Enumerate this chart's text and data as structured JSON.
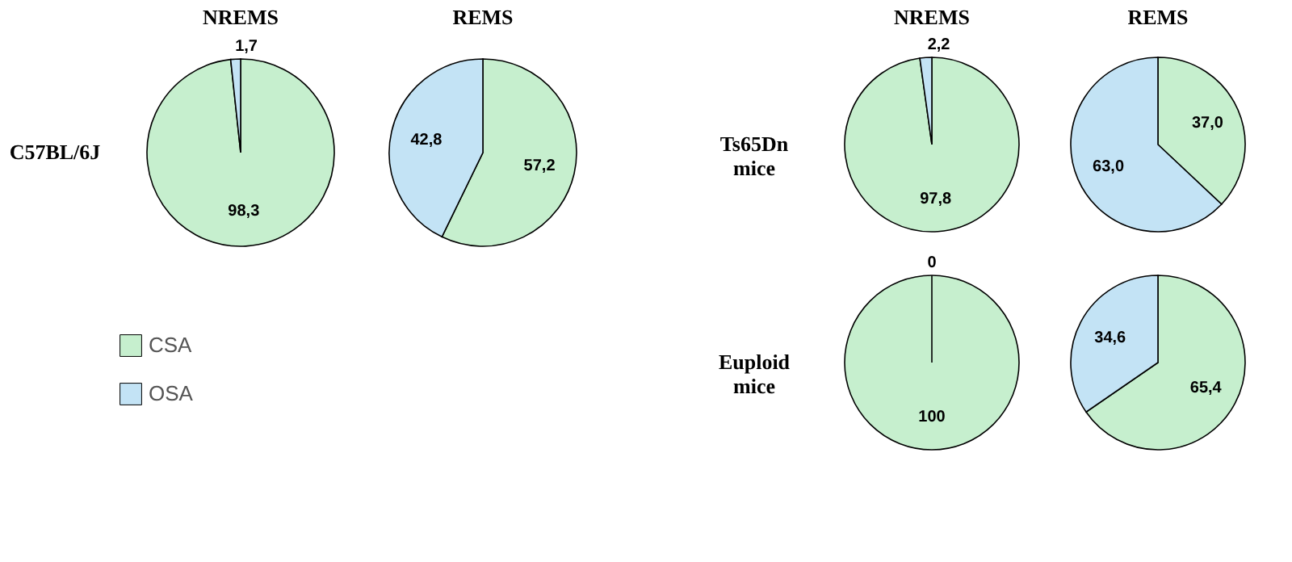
{
  "chart_data": [
    {
      "type": "pie",
      "title": "NREMS",
      "ylabel": "C57BL/6J",
      "categories": [
        "CSA",
        "OSA"
      ],
      "values": [
        98.3,
        1.7
      ],
      "colors": [
        "#c6efce",
        "#c3e3f5"
      ],
      "value_labels": [
        "98,3",
        "1,7"
      ],
      "legend": "bottom"
    },
    {
      "type": "pie",
      "title": "REMS",
      "values": [
        57.2,
        42.8
      ],
      "colors": [
        "#c6efce",
        "#c3e3f5"
      ],
      "value_labels": [
        "57,2",
        "42,8"
      ]
    },
    {
      "type": "pie",
      "title": "NREMS",
      "ylabel": "Ts65Dn mice",
      "values": [
        97.8,
        2.2
      ],
      "colors": [
        "#c6efce",
        "#c3e3f5"
      ],
      "value_labels": [
        "97,8",
        "2,2"
      ]
    },
    {
      "type": "pie",
      "title": "REMS",
      "values": [
        37.0,
        63.0
      ],
      "colors": [
        "#c6efce",
        "#c3e3f5"
      ],
      "value_labels": [
        "37,0",
        "63,0"
      ]
    },
    {
      "type": "pie",
      "ylabel": "Euploid mice",
      "values": [
        100,
        0
      ],
      "colors": [
        "#c6efce",
        "#c3e3f5"
      ],
      "value_labels": [
        "100",
        "0"
      ]
    },
    {
      "type": "pie",
      "values": [
        65.4,
        34.6
      ],
      "colors": [
        "#c6efce",
        "#c3e3f5"
      ],
      "value_labels": [
        "65,4",
        "34,6"
      ]
    }
  ]
}
